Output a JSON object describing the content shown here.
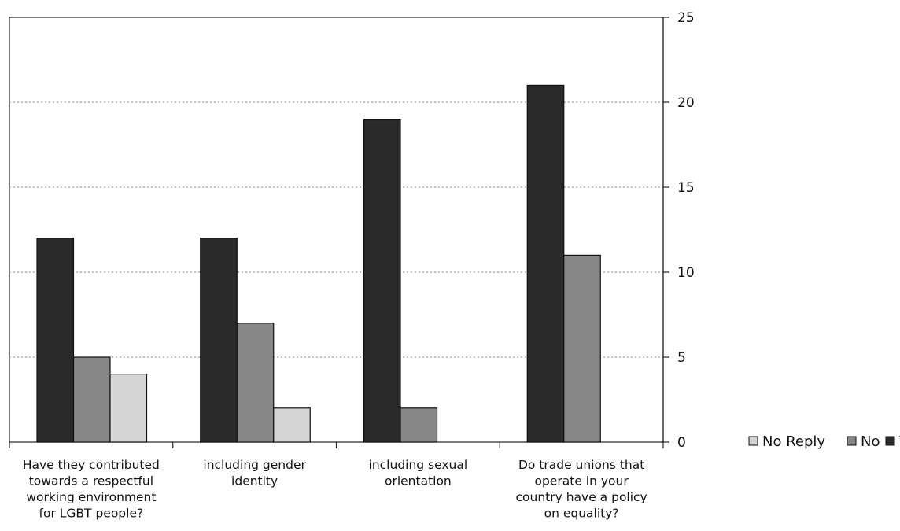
{
  "chart_data": {
    "type": "bar",
    "categories": [
      [
        "Have they contributed",
        "towards a respectful",
        "working environment",
        "for LGBT people?"
      ],
      [
        "including gender",
        "identity"
      ],
      [
        "including sexual",
        "orientation"
      ],
      [
        "Do trade unions that",
        "operate in your",
        "country have a policy",
        "on equality?"
      ]
    ],
    "series": [
      {
        "name": "Yes",
        "color": "#2a2a2a",
        "values": [
          12,
          12,
          19,
          21
        ]
      },
      {
        "name": "No",
        "color": "#878787",
        "values": [
          5,
          7,
          2,
          11
        ]
      },
      {
        "name": "No Reply",
        "color": "#d4d4d4",
        "values": [
          4,
          2,
          0,
          0
        ]
      }
    ],
    "legend_order": [
      "No Reply",
      "No",
      "Yes"
    ],
    "legend_position": "right",
    "ylim": [
      0,
      25
    ],
    "yticks": [
      0,
      5,
      10,
      15,
      20,
      25
    ],
    "y_axis_side": "right",
    "grid": "horizontal dotted",
    "title": "",
    "xlabel": "",
    "ylabel": ""
  }
}
